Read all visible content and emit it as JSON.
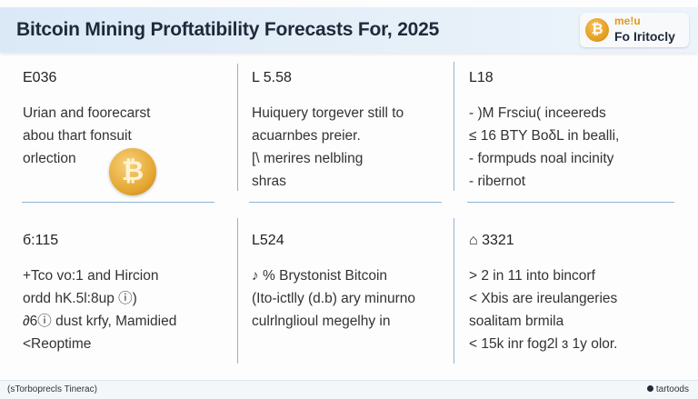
{
  "header": {
    "title": "Bitcoin Mining Proftatibility Forecasts For, 2025",
    "brand_top": "me!u",
    "brand_bottom": "Fo Iritocly",
    "brand_coin_glyph": "₿"
  },
  "cells": [
    {
      "number": "E036",
      "lines": [
        "Urian and foorecarst",
        "abou thart fonsuit",
        "orlection"
      ]
    },
    {
      "number": "L 5.58",
      "lines": [
        "Huiquery torgever still to",
        "acuarnbes preier.",
        "[\\ merires nelbling",
        "shras"
      ]
    },
    {
      "number": "L18",
      "lines": [
        "- )M Frsciu( inceereds",
        "≤ 16 BTY BoδL in bealli,",
        "- formpuds noal incinity",
        "- ribernot"
      ]
    },
    {
      "number": "б:115",
      "lines": [
        "+Tco vo:1 and Hircion",
        "ordd hK.5l:8up ⓘ)",
        "∂6ⓘ dust krfy, Mamidied",
        "<Reoptime"
      ]
    },
    {
      "number": "L524",
      "lines": [
        "♪ % Brystonist Bitcoin",
        "(Ito-ictlly (d.b) ary minurno",
        "culrlnglioul megelhy in"
      ]
    },
    {
      "number": "⌂ 3321",
      "lines": [
        "> 2 in 11 into bincorf",
        "< Xbis are ireulangeries",
        "soalitam brmila",
        "< 15k inr fog2l ɜ 1y olor."
      ]
    }
  ],
  "coin_glyph": "₿",
  "footer": {
    "left": "(sTorboprecls Tinerac)",
    "right": "tartoods"
  }
}
